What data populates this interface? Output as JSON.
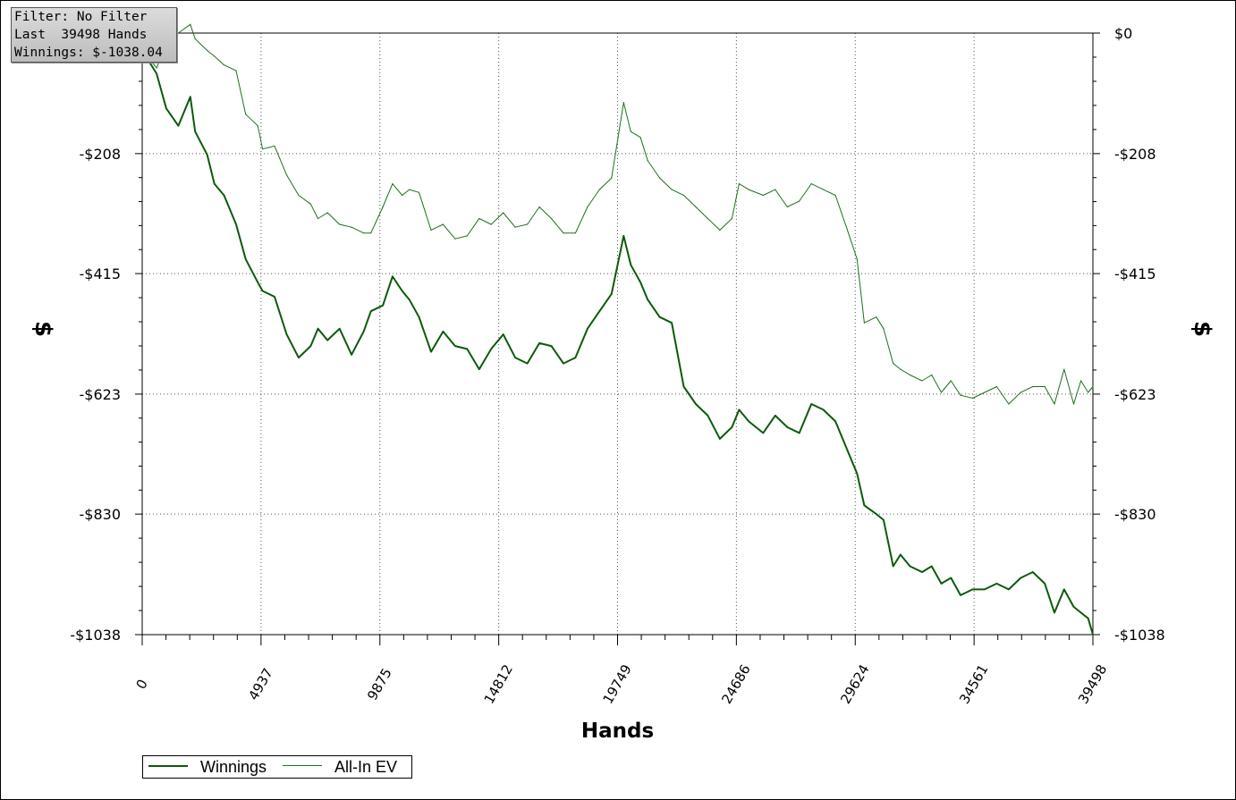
{
  "info_box": {
    "line1": "Filter: No Filter",
    "line2": "Last  39498 Hands",
    "line3": "Winnings: $-1038.04"
  },
  "legend": [
    {
      "label": "Winnings",
      "color": "#0b5a0b"
    },
    {
      "label": "All-In EV",
      "color": "#1d701d"
    }
  ],
  "chart_data": {
    "type": "line",
    "xlabel": "Hands",
    "ylabel": "$",
    "xlim": [
      0,
      39498
    ],
    "ylim": [
      -1038,
      0
    ],
    "x_ticks": [
      "0",
      "4937",
      "9875",
      "14812",
      "19749",
      "24686",
      "29624",
      "34561",
      "39498"
    ],
    "y_ticks": [
      "$0",
      "-$208",
      "-$415",
      "-$623",
      "-$830",
      "-$1038"
    ],
    "y_ticks_right": [
      "$0",
      "-$208",
      "-$415",
      "-$623",
      "-$830",
      "-$1038"
    ],
    "y_tick_values": [
      0,
      -208,
      -415,
      -623,
      -830,
      -1038
    ],
    "grid": true,
    "legend_position": "bottom-left",
    "series": [
      {
        "name": "Winnings",
        "color": "#0b5a0b",
        "x": [
          0,
          600,
          1000,
          1500,
          2000,
          2200,
          2700,
          3000,
          3400,
          3900,
          4300,
          4800,
          5000,
          5500,
          6000,
          6500,
          7000,
          7300,
          7700,
          8200,
          8700,
          9200,
          9500,
          10000,
          10400,
          10800,
          11100,
          11500,
          12000,
          12500,
          13000,
          13500,
          14000,
          14500,
          15000,
          15500,
          16000,
          16500,
          17000,
          17500,
          18000,
          18500,
          19000,
          19500,
          20000,
          20300,
          20700,
          21000,
          21500,
          22000,
          22500,
          23000,
          23500,
          24000,
          24500,
          24800,
          25200,
          25800,
          26300,
          26800,
          27300,
          27800,
          28300,
          28800,
          29300,
          29700,
          30000,
          30500,
          30800,
          31200,
          31500,
          31900,
          32400,
          32800,
          33200,
          33600,
          34000,
          34500,
          35000,
          35500,
          36000,
          36500,
          37000,
          37500,
          37900,
          38300,
          38700,
          39000,
          39300,
          39498
        ],
        "y": [
          -30,
          -70,
          -130,
          -160,
          -110,
          -170,
          -210,
          -260,
          -280,
          -330,
          -390,
          -430,
          -445,
          -455,
          -520,
          -560,
          -540,
          -510,
          -530,
          -510,
          -555,
          -515,
          -480,
          -470,
          -420,
          -445,
          -460,
          -490,
          -550,
          -515,
          -540,
          -545,
          -580,
          -545,
          -520,
          -560,
          -570,
          -535,
          -540,
          -570,
          -560,
          -510,
          -480,
          -450,
          -350,
          -400,
          -430,
          -460,
          -490,
          -500,
          -610,
          -640,
          -660,
          -700,
          -680,
          -650,
          -670,
          -690,
          -660,
          -680,
          -690,
          -640,
          -650,
          -670,
          -720,
          -760,
          -815,
          -830,
          -840,
          -920,
          -900,
          -920,
          -930,
          -920,
          -950,
          -940,
          -970,
          -960,
          -960,
          -950,
          -960,
          -940,
          -930,
          -950,
          -1000,
          -960,
          -990,
          -1000,
          -1010,
          -1038
        ]
      },
      {
        "name": "All-In EV",
        "color": "#1d701d",
        "x": [
          0,
          600,
          1000,
          1500,
          2000,
          2200,
          2700,
          3000,
          3400,
          3900,
          4300,
          4800,
          5000,
          5500,
          6000,
          6500,
          7000,
          7300,
          7700,
          8200,
          8700,
          9200,
          9500,
          10000,
          10400,
          10800,
          11100,
          11500,
          12000,
          12500,
          13000,
          13500,
          14000,
          14500,
          15000,
          15500,
          16000,
          16500,
          17000,
          17500,
          18000,
          18500,
          19000,
          19500,
          20000,
          20300,
          20700,
          21000,
          21500,
          22000,
          22500,
          23000,
          23500,
          24000,
          24500,
          24800,
          25200,
          25800,
          26300,
          26800,
          27300,
          27800,
          28300,
          28800,
          29300,
          29700,
          30000,
          30500,
          30800,
          31200,
          31500,
          31900,
          32400,
          32800,
          33200,
          33600,
          34000,
          34500,
          35000,
          35500,
          36000,
          36500,
          37000,
          37500,
          37900,
          38300,
          38700,
          39000,
          39300,
          39498
        ],
        "y": [
          -30,
          -60,
          -20,
          0,
          15,
          -10,
          -30,
          -40,
          -55,
          -65,
          -140,
          -160,
          -200,
          -195,
          -245,
          -280,
          -295,
          -320,
          -310,
          -330,
          -335,
          -345,
          -345,
          -300,
          -260,
          -280,
          -270,
          -275,
          -340,
          -330,
          -355,
          -350,
          -320,
          -330,
          -310,
          -335,
          -330,
          -300,
          -320,
          -345,
          -345,
          -300,
          -270,
          -250,
          -120,
          -170,
          -180,
          -220,
          -250,
          -270,
          -280,
          -300,
          -320,
          -340,
          -320,
          -260,
          -270,
          -280,
          -270,
          -300,
          -290,
          -260,
          -270,
          -280,
          -340,
          -390,
          -500,
          -490,
          -510,
          -570,
          -580,
          -590,
          -600,
          -590,
          -620,
          -600,
          -625,
          -630,
          -620,
          -610,
          -640,
          -620,
          -610,
          -610,
          -640,
          -580,
          -640,
          -600,
          -620,
          -610
        ]
      }
    ]
  }
}
